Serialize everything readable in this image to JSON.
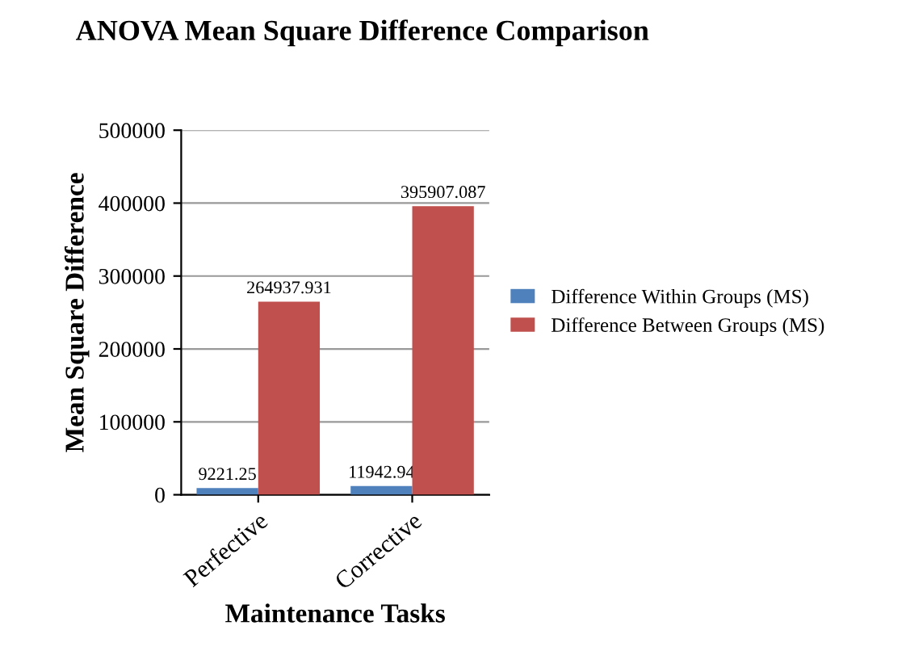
{
  "chart_data": {
    "type": "bar",
    "title": "ANOVA Mean Square Difference Comparison",
    "xlabel": "Maintenance Tasks",
    "ylabel": "Mean Square Difference",
    "categories": [
      "Perfective",
      "Corrective"
    ],
    "series": [
      {
        "name": "Difference Within Groups (MS)",
        "color": "#4f81bd",
        "values": [
          9221.25,
          11942.94
        ]
      },
      {
        "name": "Difference Between Groups (MS)",
        "color": "#c0504d",
        "values": [
          264937.931,
          395907.087
        ]
      }
    ],
    "ylim": [
      0,
      500000
    ],
    "yticks": [
      0,
      100000,
      200000,
      300000,
      400000,
      500000
    ],
    "grid": "y",
    "legend": "right",
    "data_labels": true
  }
}
